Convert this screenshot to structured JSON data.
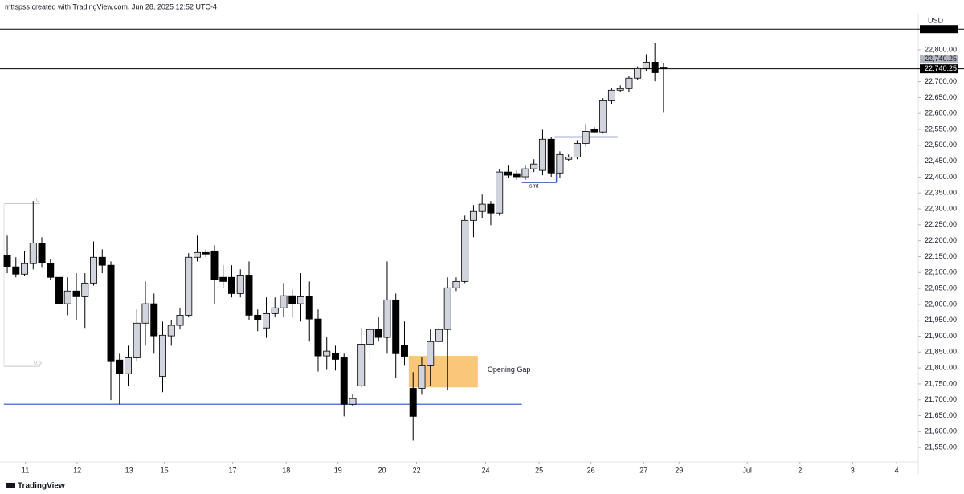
{
  "header": {
    "credit": "mttspss created with TradingView.com, Jun 28, 2025 12:52 UTC-4",
    "brand": "TradingView"
  },
  "chart_data": {
    "type": "candlestick",
    "y_label": "USD",
    "up_color": "#d1d4dc",
    "down_color": "#000000",
    "x": [
      0,
      1,
      2,
      3,
      4,
      5,
      6,
      7,
      8,
      9,
      10,
      11,
      12,
      13,
      14,
      15,
      16,
      17,
      18,
      19,
      20,
      21,
      22,
      23,
      24,
      25,
      26,
      27,
      28,
      29,
      30,
      31,
      32,
      33,
      34,
      35,
      36,
      37,
      38,
      39,
      40,
      41,
      42,
      43,
      44,
      45,
      46,
      47,
      48,
      49,
      50,
      51,
      52,
      53,
      54,
      55,
      56,
      57,
      58,
      59,
      60,
      61,
      62,
      63,
      64,
      65,
      66,
      67,
      68,
      69,
      70,
      71,
      72,
      73,
      74,
      75,
      76
    ],
    "open": [
      22153,
      22118,
      22095,
      22128,
      22193,
      22130,
      22085,
      22002,
      22042,
      22024,
      22067,
      22148,
      22123,
      21825,
      21782,
      21832,
      21941,
      22002,
      21774,
      21901,
      21934,
      21966,
      22148,
      22163,
      22168,
      22085,
      22085,
      22034,
      22092,
      21966,
      21926,
      21971,
      21989,
      22027,
      22002,
      22024,
      21954,
      21838,
      21845,
      21832,
      21686,
      21744,
      21875,
      21921,
      21896,
      22014,
      21870,
      21736,
      21736,
      21807,
      21883,
      21921,
      22052,
      22072,
      22264,
      22292,
      22315,
      22287,
      22416,
      22411,
      22401,
      22426,
      22421,
      22519,
      22413,
      22456,
      22463,
      22506,
      22549,
      22542,
      22640,
      22673,
      22678,
      22711,
      22741,
      22761,
      22743
    ],
    "high": [
      22216,
      22148,
      22168,
      22325,
      22211,
      22143,
      22098,
      22085,
      22098,
      22098,
      22198,
      22173,
      22135,
      21845,
      21870,
      21984,
      22072,
      22034,
      21946,
      21951,
      21990,
      22161,
      22216,
      22173,
      22186,
      22123,
      22123,
      22110,
      22135,
      21984,
      22022,
      22022,
      22067,
      22047,
      22098,
      22072,
      21984,
      21896,
      21870,
      21845,
      21719,
      21926,
      21934,
      21959,
      22135,
      22034,
      21946,
      21787,
      21835,
      21921,
      21934,
      22085,
      22085,
      22279,
      22312,
      22345,
      22325,
      22426,
      22436,
      22421,
      22436,
      22456,
      22549,
      22526,
      22481,
      22471,
      22516,
      22567,
      22557,
      22648,
      22680,
      22688,
      22718,
      22748,
      22786,
      22822,
      22759
    ],
    "low": [
      22098,
      22085,
      22090,
      22110,
      22115,
      22077,
      21992,
      21966,
      21951,
      21926,
      22059,
      22098,
      21699,
      21686,
      21744,
      21820,
      21870,
      21845,
      21724,
      21870,
      21921,
      21959,
      22135,
      22148,
      22002,
      22050,
      22022,
      22022,
      21951,
      21916,
      21895,
      21959,
      21959,
      21959,
      21946,
      21883,
      21789,
      21794,
      21792,
      21648,
      21681,
      21739,
      21820,
      21883,
      21845,
      21769,
      21807,
      21572,
      21716,
      21744,
      21875,
      21731,
      22042,
      22067,
      22211,
      22272,
      22249,
      22279,
      22396,
      22391,
      22391,
      22416,
      22406,
      22401,
      22396,
      22451,
      22456,
      22496,
      22537,
      22537,
      22630,
      22668,
      22668,
      22706,
      22733,
      22701,
      22602
    ],
    "close": [
      22118,
      22095,
      22128,
      22193,
      22130,
      22085,
      22002,
      22042,
      22024,
      22067,
      22148,
      22123,
      21820,
      21782,
      21832,
      21941,
      22002,
      21901,
      21903,
      21934,
      21966,
      22148,
      22163,
      22158,
      22077,
      22072,
      22034,
      22092,
      21966,
      21951,
      21971,
      21989,
      22027,
      22002,
      22024,
      21954,
      21838,
      21853,
      21827,
      21686,
      21704,
      21875,
      21921,
      21896,
      22014,
      21845,
      21837,
      21648,
      21807,
      21883,
      21921,
      22052,
      22072,
      22264,
      22292,
      22315,
      22287,
      22416,
      22406,
      22401,
      22426,
      22441,
      22519,
      22413,
      22471,
      22463,
      22506,
      22544,
      22542,
      22640,
      22673,
      22678,
      22711,
      22741,
      22761,
      22728,
      22740.25
    ],
    "xlim": [
      -0.84,
      105.5
    ],
    "xticks": [
      {
        "value": 2.1,
        "label": "11"
      },
      {
        "value": 8.1,
        "label": "12"
      },
      {
        "value": 14.1,
        "label": "13"
      },
      {
        "value": 18.2,
        "label": "15"
      },
      {
        "value": 26.1,
        "label": "17"
      },
      {
        "value": 32.3,
        "label": "18"
      },
      {
        "value": 38.3,
        "label": "19"
      },
      {
        "value": 43.4,
        "label": "20"
      },
      {
        "value": 47.4,
        "label": "22"
      },
      {
        "value": 55.4,
        "label": "24"
      },
      {
        "value": 61.6,
        "label": "25"
      },
      {
        "value": 67.6,
        "label": "26"
      },
      {
        "value": 73.7,
        "label": "27"
      },
      {
        "value": 77.8,
        "label": "29"
      },
      {
        "value": 85.7,
        "label": "Jul"
      },
      {
        "value": 91.8,
        "label": "2"
      },
      {
        "value": 97.9,
        "label": "3"
      },
      {
        "value": 103.0,
        "label": "4"
      }
    ],
    "ylim": [
      21505,
      22911
    ],
    "yticks": [
      {
        "value": 21550,
        "label": "21,550.00"
      },
      {
        "value": 21600,
        "label": "21,600.00"
      },
      {
        "value": 21650,
        "label": "21,650.00"
      },
      {
        "value": 21700,
        "label": "21,700.00"
      },
      {
        "value": 21750,
        "label": "21,750.00"
      },
      {
        "value": 21800,
        "label": "21,800.00"
      },
      {
        "value": 21850,
        "label": "21,850.00"
      },
      {
        "value": 21900,
        "label": "21,900.00"
      },
      {
        "value": 21950,
        "label": "21,950.00"
      },
      {
        "value": 22000,
        "label": "22,000.00"
      },
      {
        "value": 22050,
        "label": "22,050.00"
      },
      {
        "value": 22100,
        "label": "22,100.00"
      },
      {
        "value": 22150,
        "label": "22,150.00"
      },
      {
        "value": 22200,
        "label": "22,200.00"
      },
      {
        "value": 22250,
        "label": "22,250.00"
      },
      {
        "value": 22300,
        "label": "22,300.00"
      },
      {
        "value": 22350,
        "label": "22,350.00"
      },
      {
        "value": 22400,
        "label": "22,400.00"
      },
      {
        "value": 22450,
        "label": "22,450.00"
      },
      {
        "value": 22500,
        "label": "22,500.00"
      },
      {
        "value": 22550,
        "label": "22,550.00"
      },
      {
        "value": 22600,
        "label": "22,600.00"
      },
      {
        "value": 22650,
        "label": "22,650.00"
      },
      {
        "value": 22700,
        "label": "22,700.00"
      },
      {
        "value": 22800,
        "label": "22,800.00"
      }
    ],
    "price_labels": [
      {
        "value": 22740.25,
        "label": "22,740.25",
        "color": "#b2b5be"
      },
      {
        "value": 22740.25,
        "label": "22,740.25",
        "color": "#000000"
      }
    ],
    "horizontal_lines": [
      {
        "value": 22865,
        "color": "#000000"
      },
      {
        "value": 22740.25,
        "color": "#000000"
      }
    ],
    "levels": [
      {
        "value": 21686,
        "x": [
          -0.4,
          59.6
        ],
        "color": "#5b7fd6"
      },
      {
        "value": 22383,
        "x": [
          59.6,
          63.6
        ],
        "color": "#3a5fb0"
      },
      {
        "value": 22526,
        "x": [
          63.4,
          70.7
        ],
        "color": "#3a5fb0"
      }
    ],
    "smt": {
      "label": "smt",
      "value": 22372,
      "x": 61
    },
    "fib": [
      {
        "label": "0",
        "value": 22317
      },
      {
        "label": "0.5",
        "value": 21805
      }
    ],
    "gap": {
      "label": "Opening Gap",
      "range": [
        21739,
        21838
      ],
      "x": [
        46.5,
        54.5
      ],
      "color": "#f9c77a"
    }
  }
}
